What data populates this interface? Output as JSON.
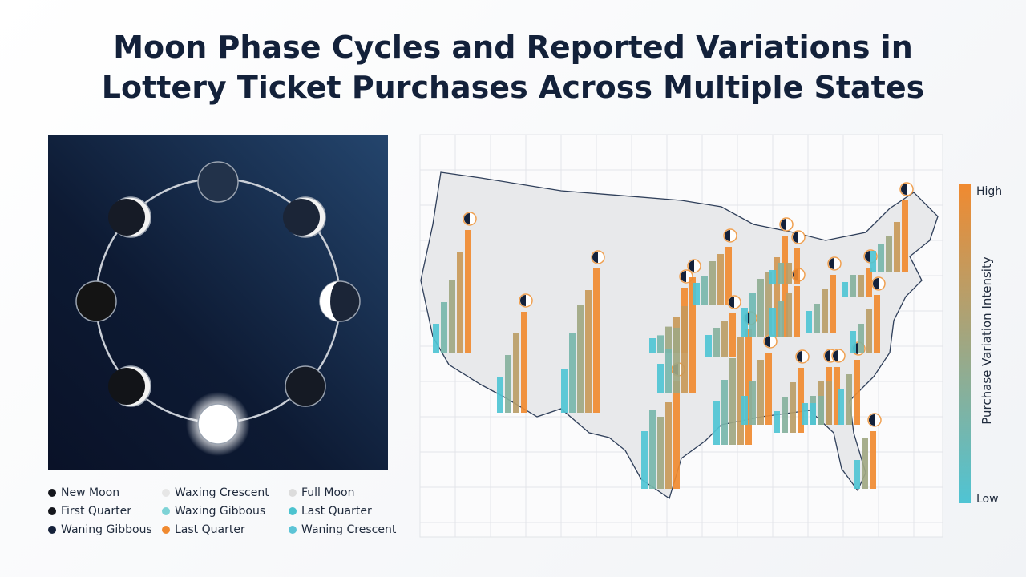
{
  "title": "Moon Phase Cycles and Reported Variations in Lottery Ticket Purchases Across Multiple States",
  "legend": [
    {
      "label": "New Moon",
      "color": "#14161c"
    },
    {
      "label": "Waxing Crescent",
      "color": "#e6e6e6"
    },
    {
      "label": "Full Moon",
      "color": "#dcdcdc"
    },
    {
      "label": "First Quarter",
      "color": "#14161c"
    },
    {
      "label": "Waxing Gibbous",
      "color": "#7ed3d6"
    },
    {
      "label": "Last Quarter",
      "color": "#4cc3cf"
    },
    {
      "label": "Waning Gibbous",
      "color": "#15213a"
    },
    {
      "label": "Last Quarter",
      "color": "#f08a30"
    },
    {
      "label": "Waning Crescent",
      "color": "#5cc4d6"
    }
  ],
  "colorbar": {
    "title": "Purchase Variation Intensity",
    "high": "High",
    "low": "Low",
    "high_color": "#f08a30",
    "low_color": "#4fc4d4"
  },
  "clusters": [
    [
      20,
      35,
      50,
      70,
      85
    ],
    [
      25,
      40,
      55,
      70
    ],
    [
      30,
      55,
      75,
      85,
      100
    ],
    [
      40,
      55,
      50,
      60,
      75
    ],
    [
      10,
      12,
      18,
      25,
      45
    ],
    [
      20,
      30,
      45,
      60,
      80
    ],
    [
      15,
      20,
      30,
      35,
      40
    ],
    [
      15,
      20,
      25,
      30
    ],
    [
      30,
      45,
      60,
      75,
      80
    ],
    [
      20,
      30,
      40,
      45,
      55,
      70
    ],
    [
      20,
      30,
      45,
      50
    ],
    [
      20,
      25,
      30,
      35
    ],
    [
      15,
      25,
      35,
      45
    ],
    [
      10,
      15,
      15,
      25
    ],
    [
      15,
      20,
      30,
      40
    ],
    [
      15,
      20,
      30,
      40
    ],
    [
      10,
      15,
      15,
      20
    ],
    [
      15,
      20,
      30,
      40
    ],
    [
      25,
      35,
      45
    ],
    [
      20,
      35,
      40
    ],
    [
      15,
      20,
      25,
      35,
      50
    ],
    [
      15,
      20,
      30,
      40
    ]
  ]
}
